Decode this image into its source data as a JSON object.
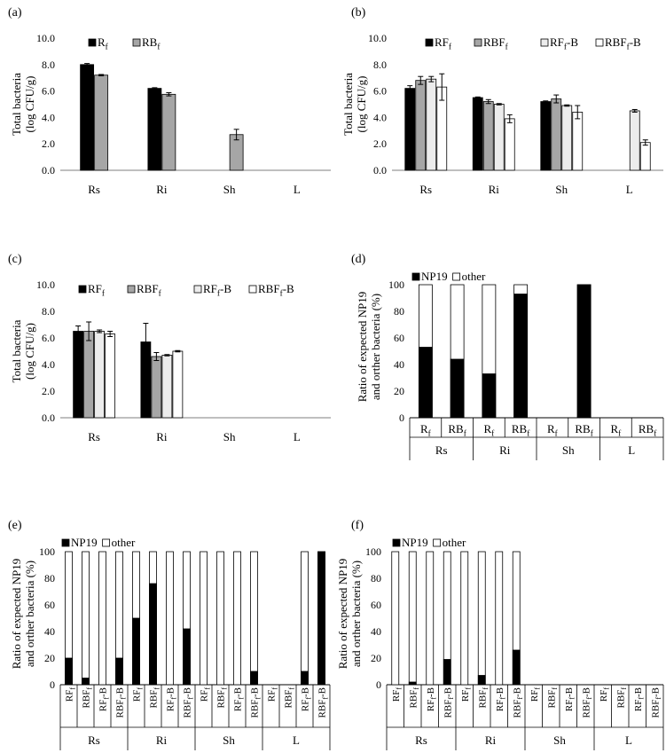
{
  "figure_caption": "Six-panel bacterial count and NP19 ratio figure",
  "chart_data": [
    {
      "panel_label": "(a)",
      "type": "bar",
      "ylabel": [
        "Total bacteria",
        "(log CFU/g)"
      ],
      "ylim": [
        0,
        10
      ],
      "yticks": [
        "0.0",
        "2.0",
        "4.0",
        "6.0",
        "8.0",
        "10.0"
      ],
      "categories": [
        "Rs",
        "Ri",
        "Sh",
        "L"
      ],
      "series": [
        {
          "name": "R",
          "sub": "f",
          "style": "black",
          "values": [
            8.0,
            6.2,
            null,
            null
          ],
          "errors": [
            0.08,
            0.05,
            null,
            null
          ]
        },
        {
          "name": "RB",
          "sub": "f",
          "style": "gray",
          "values": [
            7.2,
            5.75,
            2.7,
            null
          ],
          "errors": [
            0.05,
            0.12,
            0.4,
            null
          ]
        }
      ]
    },
    {
      "panel_label": "(b)",
      "type": "bar",
      "ylabel": [
        "Total bacteria",
        "(log CFU/g)"
      ],
      "ylim": [
        0,
        10
      ],
      "yticks": [
        "0.0",
        "2.0",
        "4.0",
        "6.0",
        "8.0",
        "10.0"
      ],
      "categories": [
        "Rs",
        "Ri",
        "Sh",
        "L"
      ],
      "series": [
        {
          "name": "RF",
          "sub": "f",
          "suffix": "",
          "style": "black",
          "values": [
            6.2,
            5.5,
            5.2,
            null
          ],
          "errors": [
            0.2,
            0.05,
            0.05,
            null
          ]
        },
        {
          "name": "RBF",
          "sub": "f",
          "suffix": "",
          "style": "gray",
          "values": [
            6.8,
            5.2,
            5.4,
            null
          ],
          "errors": [
            0.3,
            0.15,
            0.3,
            null
          ]
        },
        {
          "name": "RF",
          "sub": "f",
          "suffix": "-B",
          "style": "light",
          "values": [
            6.9,
            5.0,
            4.9,
            4.5
          ],
          "errors": [
            0.2,
            0.05,
            0.05,
            0.1
          ]
        },
        {
          "name": "RBF",
          "sub": "f",
          "suffix": "-B",
          "style": "white",
          "values": [
            6.3,
            3.9,
            4.4,
            2.1
          ],
          "errors": [
            1.0,
            0.3,
            0.5,
            0.2
          ]
        }
      ]
    },
    {
      "panel_label": "(c)",
      "type": "bar",
      "ylabel": [
        "Total bacteria",
        "(log CFU/g)"
      ],
      "ylim": [
        0,
        10
      ],
      "yticks": [
        "0.0",
        "2.0",
        "4.0",
        "6.0",
        "8.0",
        "10.0"
      ],
      "categories": [
        "Rs",
        "Ri",
        "Sh",
        "L"
      ],
      "series": [
        {
          "name": "RF",
          "sub": "f",
          "suffix": "",
          "style": "black",
          "values": [
            6.5,
            5.7,
            null,
            null
          ],
          "errors": [
            0.4,
            1.4,
            null,
            null
          ]
        },
        {
          "name": "RBF",
          "sub": "f",
          "suffix": "",
          "style": "gray",
          "values": [
            6.5,
            4.6,
            null,
            null
          ],
          "errors": [
            0.7,
            0.3,
            null,
            null
          ]
        },
        {
          "name": "RF",
          "sub": "f",
          "suffix": "-B",
          "style": "light",
          "values": [
            6.5,
            4.7,
            null,
            null
          ],
          "errors": [
            0.1,
            0.05,
            null,
            null
          ]
        },
        {
          "name": "RBF",
          "sub": "f",
          "suffix": "-B",
          "style": "white",
          "values": [
            6.3,
            5.0,
            null,
            null
          ],
          "errors": [
            0.2,
            0.05,
            null,
            null
          ]
        }
      ]
    },
    {
      "panel_label": "(d)",
      "type": "stacked-bar",
      "ylabel": [
        "Ratio of expected NP19",
        "and orther bacteria (%)"
      ],
      "ylim": [
        0,
        100
      ],
      "yticks": [
        "0",
        "20",
        "40",
        "60",
        "80",
        "100"
      ],
      "legend": [
        {
          "name": "NP19",
          "style": "black"
        },
        {
          "name": "other",
          "style": "white"
        }
      ],
      "groups": [
        "Rs",
        "Ri",
        "Sh",
        "L"
      ],
      "bar_labels": [
        {
          "main": "R",
          "sub": "f",
          "suffix": ""
        },
        {
          "main": "RB",
          "sub": "f",
          "suffix": ""
        }
      ],
      "np19": [
        53,
        44,
        33,
        93,
        null,
        100,
        null,
        null
      ],
      "total": [
        100,
        100,
        100,
        100,
        null,
        100,
        null,
        null
      ]
    },
    {
      "panel_label": "(e)",
      "type": "stacked-bar",
      "ylabel": [
        "Ratio of expected NP19",
        "and orther bacteria (%)"
      ],
      "ylim": [
        0,
        100
      ],
      "yticks": [
        "0",
        "20",
        "40",
        "60",
        "80",
        "100"
      ],
      "legend": [
        {
          "name": "NP19",
          "style": "black"
        },
        {
          "name": "other",
          "style": "white"
        }
      ],
      "groups": [
        "Rs",
        "Ri",
        "Sh",
        "L"
      ],
      "bar_labels": [
        {
          "main": "RF",
          "sub": "f",
          "suffix": ""
        },
        {
          "main": "RBF",
          "sub": "f",
          "suffix": ""
        },
        {
          "main": "RF",
          "sub": "f",
          "suffix": "-B"
        },
        {
          "main": "RBF",
          "sub": "f",
          "suffix": "-B"
        }
      ],
      "np19": [
        20,
        5,
        0,
        20,
        50,
        76,
        0,
        42,
        0,
        0,
        0,
        10,
        null,
        null,
        10,
        100
      ],
      "total": [
        100,
        100,
        100,
        100,
        100,
        100,
        100,
        100,
        100,
        100,
        100,
        100,
        null,
        null,
        100,
        100
      ]
    },
    {
      "panel_label": "(f)",
      "type": "stacked-bar",
      "ylabel": [
        "Ratio of expected NP19",
        "and orther bacteria (%)"
      ],
      "ylim": [
        0,
        100
      ],
      "yticks": [
        "0",
        "20",
        "40",
        "60",
        "80",
        "100"
      ],
      "legend": [
        {
          "name": "NP19",
          "style": "black"
        },
        {
          "name": "other",
          "style": "white"
        }
      ],
      "groups": [
        "Rs",
        "Ri",
        "Sh",
        "L"
      ],
      "bar_labels": [
        {
          "main": "RF",
          "sub": "f",
          "suffix": ""
        },
        {
          "main": "RBF",
          "sub": "f",
          "suffix": ""
        },
        {
          "main": "RF",
          "sub": "f",
          "suffix": "-B"
        },
        {
          "main": "RBF",
          "sub": "f",
          "suffix": "-B"
        }
      ],
      "np19": [
        0,
        2,
        0,
        19,
        0,
        7,
        0,
        26,
        null,
        null,
        null,
        null,
        null,
        null,
        null,
        null
      ],
      "total": [
        100,
        100,
        100,
        100,
        100,
        100,
        100,
        100,
        null,
        null,
        null,
        null,
        null,
        null,
        null,
        null
      ]
    }
  ],
  "colors": {
    "black": "#000000",
    "gray": "#a6a6a6",
    "light": "#ececec",
    "white": "#ffffff",
    "axis": "#7f7f7f"
  }
}
